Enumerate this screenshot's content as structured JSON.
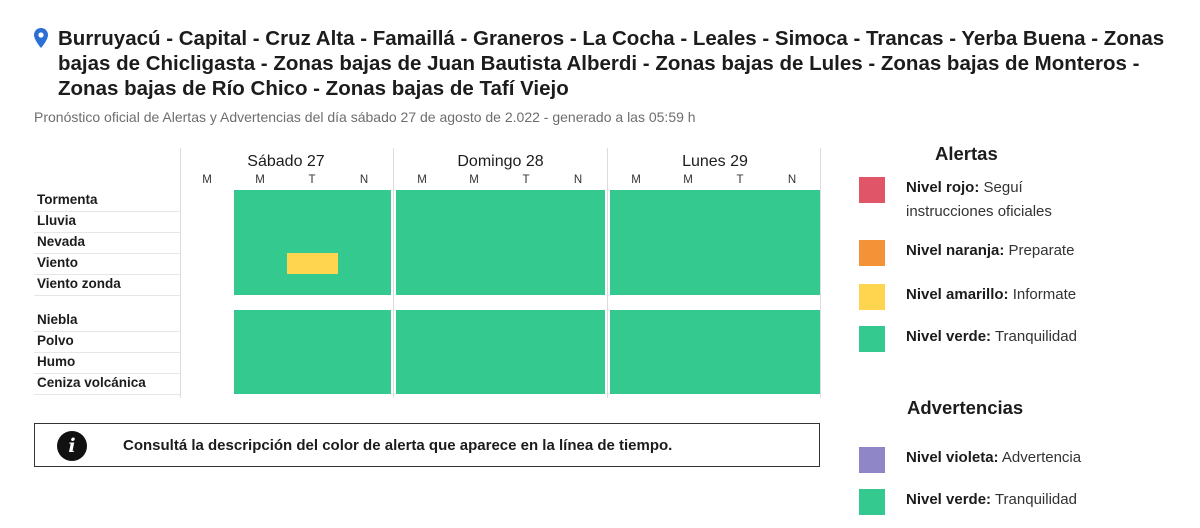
{
  "title": "Burruyacú - Capital - Cruz Alta - Famaillá - Graneros - La Cocha - Leales - Simoca - Trancas - Yerba Buena - Zonas bajas de Chicligasta - Zonas bajas de Juan Bautista Alberdi - Zonas bajas de Lules - Zonas bajas de Monteros - Zonas bajas de Río Chico - Zonas bajas de Tafí Viejo",
  "subtitle": "Pronóstico oficial de Alertas y Advertencias del día sábado 27 de agosto de 2.022 - generado a las 05:59 h",
  "icons": {
    "location": "map-pin-icon",
    "info": "info-icon"
  },
  "days": [
    {
      "label": "Sábado 27",
      "slots": [
        "M",
        "M",
        "T",
        "N"
      ]
    },
    {
      "label": "Domingo 28",
      "slots": [
        "M",
        "M",
        "T",
        "N"
      ]
    },
    {
      "label": "Lunes 29",
      "slots": [
        "M",
        "M",
        "T",
        "N"
      ]
    }
  ],
  "alert_rows": [
    {
      "label": "Tormenta",
      "levels": [
        "none",
        "verde",
        "verde",
        "verde",
        "verde",
        "verde",
        "verde",
        "verde",
        "verde",
        "verde",
        "verde",
        "verde"
      ]
    },
    {
      "label": "Lluvia",
      "levels": [
        "none",
        "verde",
        "verde",
        "verde",
        "verde",
        "verde",
        "verde",
        "verde",
        "verde",
        "verde",
        "verde",
        "verde"
      ]
    },
    {
      "label": "Nevada",
      "levels": [
        "none",
        "verde",
        "verde",
        "verde",
        "verde",
        "verde",
        "verde",
        "verde",
        "verde",
        "verde",
        "verde",
        "verde"
      ]
    },
    {
      "label": "Viento",
      "levels": [
        "none",
        "verde",
        "amarillo",
        "verde",
        "verde",
        "verde",
        "verde",
        "verde",
        "verde",
        "verde",
        "verde",
        "verde"
      ]
    },
    {
      "label": "Viento zonda",
      "levels": [
        "none",
        "verde",
        "verde",
        "verde",
        "verde",
        "verde",
        "verde",
        "verde",
        "verde",
        "verde",
        "verde",
        "verde"
      ]
    }
  ],
  "warning_rows": [
    {
      "label": "Niebla",
      "levels": [
        "none",
        "verde",
        "verde",
        "verde",
        "verde",
        "verde",
        "verde",
        "verde",
        "verde",
        "verde",
        "verde",
        "verde"
      ]
    },
    {
      "label": "Polvo",
      "levels": [
        "none",
        "verde",
        "verde",
        "verde",
        "verde",
        "verde",
        "verde",
        "verde",
        "verde",
        "verde",
        "verde",
        "verde"
      ]
    },
    {
      "label": "Humo",
      "levels": [
        "none",
        "verde",
        "verde",
        "verde",
        "verde",
        "verde",
        "verde",
        "verde",
        "verde",
        "verde",
        "verde",
        "verde"
      ]
    },
    {
      "label": "Ceniza volcánica",
      "levels": [
        "none",
        "verde",
        "verde",
        "verde",
        "verde",
        "verde",
        "verde",
        "verde",
        "verde",
        "verde",
        "verde",
        "verde"
      ]
    }
  ],
  "info_text": "Consultá la descripción del color de alerta que aparece en la línea de tiempo.",
  "legend": {
    "alertas_title": "Alertas",
    "alertas": [
      {
        "name": "Nivel rojo:",
        "desc": "Seguí instrucciones oficiales",
        "color": "#e05567"
      },
      {
        "name": "Nivel naranja:",
        "desc": "Preparate",
        "color": "#f39237"
      },
      {
        "name": "Nivel amarillo:",
        "desc": "Informate",
        "color": "#ffd54f"
      },
      {
        "name": "Nivel verde:",
        "desc": "Tranquilidad",
        "color": "#34c98e"
      }
    ],
    "advertencias_title": "Advertencias",
    "advertencias": [
      {
        "name": "Nivel violeta:",
        "desc": "Advertencia",
        "color": "#8e86c6"
      },
      {
        "name": "Nivel verde:",
        "desc": "Tranquilidad",
        "color": "#34c98e"
      }
    ]
  },
  "colors": {
    "verde": "#34c98e",
    "amarillo": "#ffd54f",
    "pin": "#2c6fd6"
  }
}
